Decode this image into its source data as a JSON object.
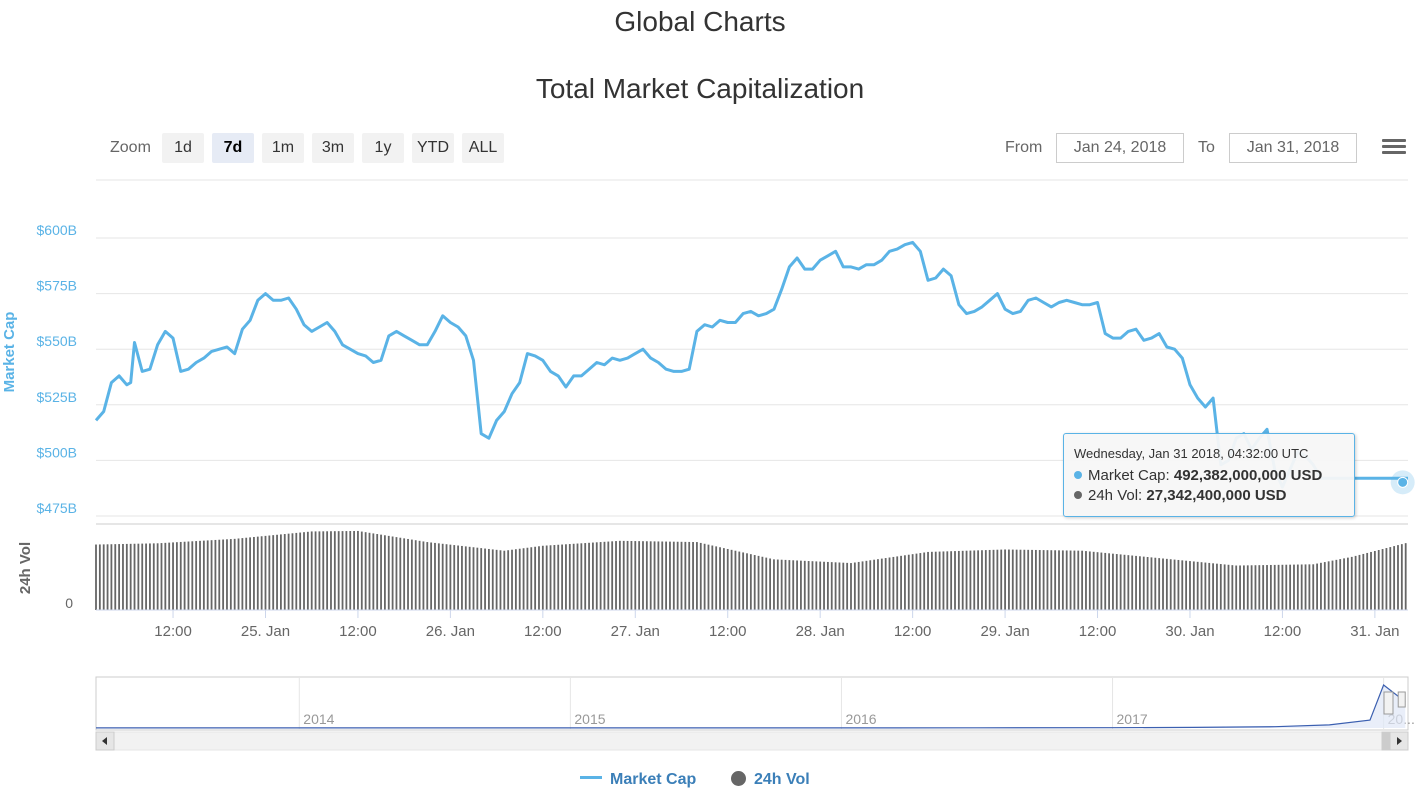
{
  "page": {
    "title": "Global Charts",
    "chart_title": "Total Market Capitalization"
  },
  "range_selector": {
    "zoom_label": "Zoom",
    "buttons": [
      "1d",
      "7d",
      "1m",
      "3m",
      "1y",
      "YTD",
      "ALL"
    ],
    "active": "7d",
    "from_label": "From",
    "from_value": "Jan 24, 2018",
    "to_label": "To",
    "to_value": "Jan 31, 2018"
  },
  "tooltip": {
    "header": "Wednesday, Jan 31 2018, 04:32:00 UTC",
    "market_cap_label": "Market Cap: ",
    "market_cap_value": "492,382,000,000 USD",
    "volume_label": "24h Vol: ",
    "volume_value": "27,342,400,000 USD"
  },
  "legend": {
    "market_cap": "Market Cap",
    "volume": "24h Vol"
  },
  "colors": {
    "market_cap": "#5ab3e6",
    "volume": "#666666",
    "axis_label_blue": "#5ab3e6",
    "navigator_line": "#3b5fb0"
  },
  "icons": {
    "menu": "hamburger-menu-icon",
    "scroll_left": "arrow-left-icon",
    "scroll_right": "arrow-right-icon"
  },
  "chart_data": {
    "type": "line",
    "title": "Total Market Capitalization",
    "y_axis_market_cap": {
      "label": "Market Cap",
      "ticks": [
        "$475B",
        "$500B",
        "$525B",
        "$550B",
        "$575B",
        "$600B"
      ],
      "tick_values": [
        475,
        500,
        525,
        550,
        575,
        600
      ],
      "ylim": [
        475,
        612
      ],
      "unit": "USD billions"
    },
    "y_axis_volume": {
      "label": "24h Vol",
      "ticks": [
        "0"
      ]
    },
    "x_axis": {
      "ticks": [
        "12:00",
        "25. Jan",
        "12:00",
        "26. Jan",
        "12:00",
        "27. Jan",
        "12:00",
        "28. Jan",
        "12:00",
        "29. Jan",
        "12:00",
        "30. Jan",
        "12:00",
        "31. Jan"
      ],
      "tick_hours": [
        12,
        24,
        36,
        48,
        60,
        72,
        84,
        96,
        108,
        120,
        132,
        144,
        156,
        168
      ],
      "xlim_hours": [
        2,
        172.3
      ],
      "origin": "Jan 24, 2018 00:00 UTC"
    },
    "series": [
      {
        "name": "Market Cap",
        "x_hours": [
          2,
          3,
          4,
          5,
          6,
          6.5,
          7,
          8,
          9,
          10,
          11,
          12,
          13,
          14,
          15,
          16,
          17,
          18,
          19,
          20,
          21,
          22,
          23,
          24,
          25,
          26,
          27,
          28,
          29,
          30,
          31,
          32,
          33,
          34,
          35,
          36,
          37,
          38,
          39,
          40,
          41,
          42,
          43,
          44,
          45,
          46,
          47,
          48,
          49,
          50,
          51,
          52,
          53,
          54,
          55,
          56,
          57,
          58,
          59,
          60,
          61,
          62,
          63,
          64,
          65,
          66,
          67,
          68,
          69,
          70,
          71,
          72,
          73,
          74,
          75,
          76,
          77,
          78,
          79,
          80,
          81,
          82,
          83,
          84,
          85,
          86,
          87,
          88,
          89,
          90,
          91,
          92,
          93,
          94,
          95,
          96,
          97,
          98,
          99,
          100,
          101,
          102,
          103,
          104,
          105,
          106,
          107,
          108,
          109,
          110,
          111,
          112,
          113,
          114,
          115,
          116,
          117,
          118,
          119,
          120,
          121,
          122,
          123,
          124,
          125,
          126,
          127,
          128,
          129,
          130,
          131,
          132,
          133,
          134,
          135,
          136,
          137,
          138,
          139,
          140,
          141,
          142,
          143,
          144,
          145,
          146,
          147,
          148,
          149,
          150,
          151,
          152,
          153,
          154,
          155,
          156,
          157,
          158,
          159,
          160,
          161,
          162,
          163,
          164,
          165,
          166,
          167,
          168,
          169,
          170,
          171,
          172,
          172.3
        ],
        "values": [
          518,
          522,
          535,
          538,
          534,
          535,
          553,
          540,
          541,
          552,
          558,
          555,
          540,
          541,
          544,
          546,
          549,
          550,
          551,
          548,
          559,
          563,
          572,
          575,
          572,
          572,
          573,
          568,
          561,
          558,
          560,
          562,
          558,
          552,
          550,
          548,
          547,
          544,
          545,
          556,
          558,
          556,
          554,
          552,
          552,
          558,
          565,
          562,
          560,
          556,
          545,
          512,
          510,
          518,
          522,
          530,
          535,
          548,
          547,
          545,
          540,
          538,
          533,
          538,
          538,
          541,
          544,
          543,
          546,
          545,
          546,
          548,
          550,
          546,
          544,
          541,
          540,
          540,
          541,
          558,
          561,
          560,
          563,
          562,
          562,
          566,
          567,
          565,
          566,
          568,
          577,
          587,
          591,
          586,
          586,
          590,
          592,
          594,
          587,
          587,
          586,
          588,
          588,
          590,
          594,
          595,
          597,
          598,
          594,
          581,
          582,
          586,
          583,
          570,
          566,
          567,
          569,
          572,
          575,
          568,
          566,
          567,
          572,
          573,
          571,
          569,
          571,
          572,
          571,
          570,
          570,
          571,
          557,
          555,
          555,
          558,
          559,
          554,
          555,
          557,
          551,
          550,
          546,
          534,
          528,
          524,
          528,
          498,
          500,
          510,
          512,
          505,
          510,
          514,
          496,
          488,
          496,
          504,
          502,
          498,
          492,
          492,
          492,
          492,
          492,
          492,
          492,
          492,
          492,
          492,
          492,
          492,
          492
        ]
      },
      {
        "name": "24h Vol",
        "x_hours": [
          2,
          10,
          20,
          30,
          36,
          45,
          55,
          60,
          70,
          80,
          90,
          100,
          110,
          120,
          130,
          140,
          150,
          160,
          165,
          172.3
        ],
        "values": [
          26.5,
          27.0,
          28.8,
          31.8,
          32.0,
          27.5,
          24.0,
          26.0,
          28.0,
          27.5,
          20.5,
          19.0,
          23.5,
          24.5,
          24.0,
          21.0,
          18.0,
          18.5,
          21.5,
          27.3
        ],
        "unit": "USD billions (relative)"
      }
    ],
    "highlighted_point": {
      "x_hours": 172,
      "market_cap": 492.382,
      "volume": 27.3424
    },
    "navigator": {
      "year_labels": [
        "2014",
        "2015",
        "2016",
        "2017",
        "20..."
      ],
      "x_years": [
        2013.25,
        2014,
        2014.5,
        2015,
        2015.5,
        2016,
        2016.5,
        2017,
        2017.3,
        2017.6,
        2017.8,
        2017.95,
        2018.0,
        2018.08
      ],
      "values": [
        1,
        1.5,
        1,
        1,
        1.5,
        2,
        3,
        5,
        12,
        25,
        60,
        150,
        820,
        500
      ]
    },
    "grid": true,
    "legend_position": "bottom-center"
  }
}
